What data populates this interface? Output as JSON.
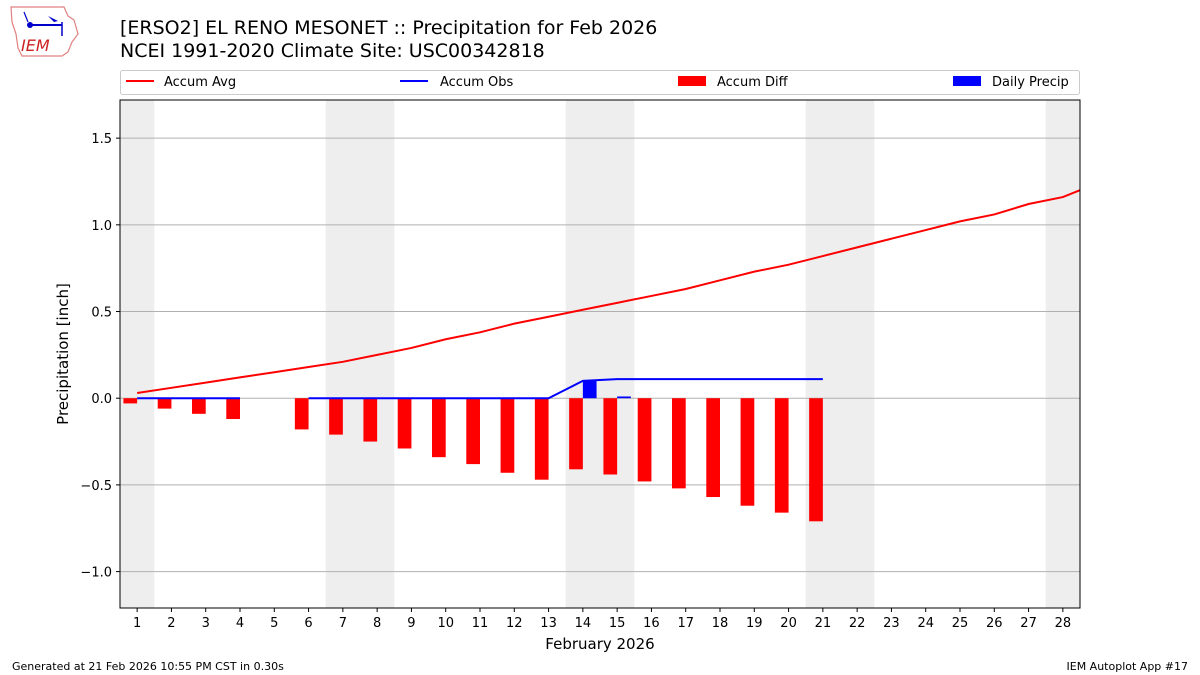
{
  "header": {
    "title_line1": "[ERSO2] EL RENO MESONET :: Precipitation for Feb 2026",
    "title_line2": "NCEI 1991-2020 Climate Site: USC00342818",
    "logo_text": "IEM"
  },
  "footer": {
    "left": "Generated at 21 Feb 2026 10:55 PM CST in 0.30s",
    "right": "IEM Autoplot App #17"
  },
  "colors": {
    "avg": "#ff0000",
    "obs": "#0000ff",
    "diff": "#ff0000",
    "daily": "#0000ff",
    "weekend": "#eeeeee"
  },
  "chart_data": {
    "type": "bar+line",
    "xlabel": "February 2026",
    "ylabel": "Precipitation [inch]",
    "xlim": [
      0.5,
      28.5
    ],
    "ylim": [
      -1.21,
      1.72
    ],
    "yticks": [
      -1.0,
      -0.5,
      0.0,
      0.5,
      1.0,
      1.5
    ],
    "ytick_labels": [
      "−1.0",
      "−0.5",
      "0.0",
      "0.5",
      "1.0",
      "1.5"
    ],
    "x": [
      1,
      2,
      3,
      4,
      5,
      6,
      7,
      8,
      9,
      10,
      11,
      12,
      13,
      14,
      15,
      16,
      17,
      18,
      19,
      20,
      21,
      22,
      23,
      24,
      25,
      26,
      27,
      28
    ],
    "weekend_days": [
      1,
      7,
      8,
      14,
      15,
      21,
      22,
      28
    ],
    "grid": "horizontal",
    "legend": {
      "placement": "top",
      "entries": [
        "Accum Avg",
        "Accum Obs",
        "Accum Diff",
        "Daily Precip"
      ]
    },
    "series": [
      {
        "name": "Accum Avg",
        "type": "line",
        "values": [
          0.03,
          0.06,
          0.09,
          0.12,
          0.15,
          0.18,
          0.21,
          0.25,
          0.29,
          0.34,
          0.38,
          0.43,
          0.47,
          0.51,
          0.55,
          0.59,
          0.63,
          0.68,
          0.73,
          0.77,
          0.82,
          0.87,
          0.92,
          0.97,
          1.02,
          1.06,
          1.12,
          1.16
        ],
        "end_value": 1.2
      },
      {
        "name": "Accum Obs",
        "type": "line",
        "values": [
          0,
          0,
          0,
          0,
          null,
          0,
          0,
          0,
          0,
          0,
          0,
          0,
          0,
          0.1,
          0.11,
          0.11,
          0.11,
          0.11,
          0.11,
          0.11,
          0.11,
          null,
          null,
          null,
          null,
          null,
          null,
          null
        ]
      },
      {
        "name": "Accum Diff",
        "type": "bar",
        "values": [
          -0.03,
          -0.06,
          -0.09,
          -0.12,
          null,
          -0.18,
          -0.21,
          -0.25,
          -0.29,
          -0.34,
          -0.38,
          -0.43,
          -0.47,
          -0.41,
          -0.44,
          -0.48,
          -0.52,
          -0.57,
          -0.62,
          -0.66,
          -0.71,
          null,
          null,
          null,
          null,
          null,
          null,
          null
        ]
      },
      {
        "name": "Daily Precip",
        "type": "bar",
        "values": [
          0,
          0,
          0,
          0,
          null,
          0,
          0,
          0,
          0,
          0,
          0,
          0,
          0,
          0.1,
          0.01,
          0,
          0,
          0,
          0,
          0,
          0,
          null,
          null,
          null,
          null,
          null,
          null,
          null
        ]
      }
    ]
  }
}
